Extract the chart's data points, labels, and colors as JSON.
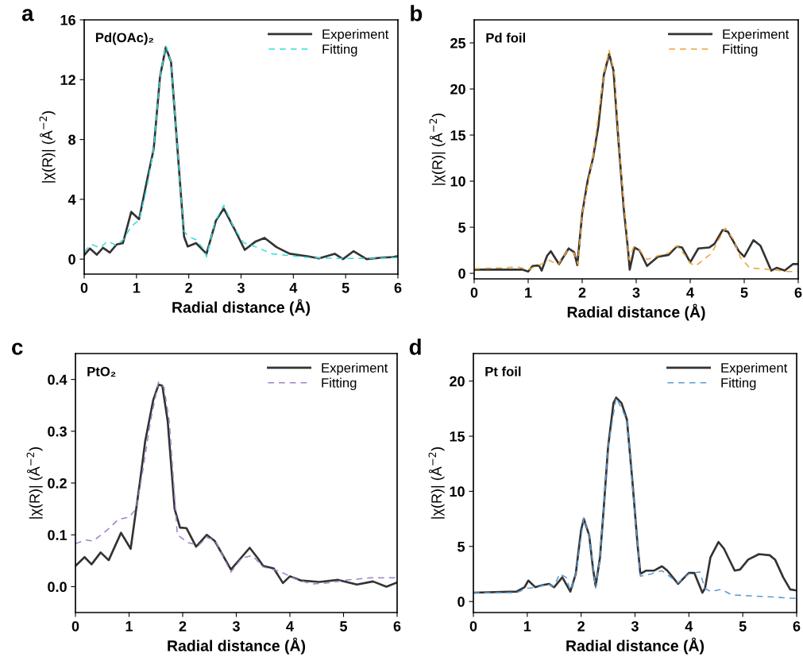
{
  "chart_data": [
    {
      "type": "line",
      "title": "a",
      "xlabel": "Radial distance (Å)",
      "ylabel": "|χ(R)| (Å$^{−2}$)",
      "annotations": [
        "Pd(OAc)₂"
      ],
      "xlim": [
        0,
        6
      ],
      "xticks": [
        0,
        1,
        2,
        3,
        4,
        5,
        6
      ],
      "ylim": [
        -1,
        16
      ],
      "yticks": [
        0,
        4,
        8,
        12,
        16
      ],
      "legend": "top right",
      "grid": false,
      "series": [
        {
          "name": "Experiment",
          "color": "#333333",
          "line_style": "solid",
          "x": [
            0,
            0.11,
            0.24,
            0.36,
            0.49,
            0.62,
            0.74,
            0.9,
            1.05,
            1.2,
            1.33,
            1.45,
            1.56,
            1.66,
            1.78,
            1.91,
            1.98,
            2.14,
            2.34,
            2.52,
            2.67,
            2.87,
            3.07,
            3.27,
            3.45,
            3.68,
            3.93,
            4.29,
            4.49,
            4.79,
            4.95,
            5.15,
            5.4,
            5.66,
            5.91,
            6
          ],
          "values": [
            0.27,
            0.71,
            0.3,
            0.76,
            0.44,
            0.98,
            1.07,
            3.16,
            2.67,
            5.24,
            7.38,
            12.2,
            14.17,
            13.2,
            7.56,
            1.51,
            0.85,
            1.07,
            0.36,
            2.58,
            3.38,
            2.04,
            0.62,
            1.16,
            1.42,
            0.8,
            0.36,
            0.18,
            0.05,
            0.36,
            0,
            0.53,
            0,
            0.09,
            0.14,
            0.2
          ]
        },
        {
          "name": "Fitting",
          "color": "#33dddd",
          "line_style": "dashed",
          "x": [
            0,
            0.14,
            0.3,
            0.45,
            0.6,
            0.75,
            0.9,
            1.05,
            1.2,
            1.33,
            1.45,
            1.56,
            1.66,
            1.78,
            1.9,
            2.0,
            2.14,
            2.3,
            2.34,
            2.5,
            2.67,
            2.85,
            3.05,
            3.3,
            3.6,
            3.9,
            4.3,
            4.8,
            5.4,
            6
          ],
          "values": [
            0.5,
            1.0,
            0.75,
            1.2,
            0.95,
            1.3,
            2.2,
            2.6,
            4.8,
            7.4,
            12.2,
            14.3,
            13.2,
            7.6,
            1.9,
            1.5,
            1.3,
            0.6,
            0.15,
            2.5,
            3.6,
            2.2,
            1.1,
            0.8,
            0.35,
            0.25,
            0.1,
            0.05,
            0.05,
            0.1
          ]
        }
      ]
    },
    {
      "type": "line",
      "title": "b",
      "xlabel": "Radial distance (Å)",
      "ylabel": "|χ(R)| (Å$^{−2}$)",
      "annotations": [
        "Pd foil"
      ],
      "xlim": [
        0,
        6
      ],
      "xticks": [
        0,
        1,
        2,
        3,
        4,
        5,
        6
      ],
      "ylim": [
        -0.6,
        27.5
      ],
      "yticks": [
        0,
        5,
        10,
        15,
        20,
        25
      ],
      "legend": "top right",
      "grid": false,
      "series": [
        {
          "name": "Experiment",
          "color": "#333333",
          "line_style": "solid",
          "x": [
            0,
            0.3,
            0.6,
            0.9,
            1.0,
            1.08,
            1.2,
            1.25,
            1.35,
            1.42,
            1.57,
            1.75,
            1.85,
            1.91,
            2.0,
            2.1,
            2.2,
            2.3,
            2.4,
            2.5,
            2.58,
            2.67,
            2.77,
            2.85,
            2.88,
            2.97,
            3.06,
            3.2,
            3.4,
            3.6,
            3.75,
            3.85,
            4.0,
            4.15,
            4.35,
            4.45,
            4.6,
            4.7,
            4.9,
            5.0,
            5.17,
            5.3,
            5.5,
            5.6,
            5.75,
            5.9,
            6
          ],
          "values": [
            0.4,
            0.4,
            0.4,
            0.4,
            0.2,
            0.8,
            0.85,
            0.3,
            1.9,
            2.4,
            1.0,
            2.7,
            2.3,
            0.9,
            6.5,
            10,
            12.5,
            16,
            21.5,
            23.8,
            22,
            14.5,
            7,
            2.5,
            0.4,
            2.8,
            2.5,
            0.8,
            1.8,
            2.0,
            2.9,
            2.8,
            1.2,
            2.7,
            2.8,
            3.2,
            4.7,
            4.5,
            2.4,
            1.8,
            3.6,
            3.0,
            0.3,
            0.6,
            0.3,
            1.0,
            1.0
          ]
        },
        {
          "name": "Fitting",
          "color": "#f0a030",
          "line_style": "dashed",
          "x": [
            0,
            0.5,
            0.8,
            1.0,
            1.2,
            1.4,
            1.55,
            1.72,
            1.85,
            1.92,
            2.0,
            2.2,
            2.4,
            2.5,
            2.6,
            2.67,
            2.78,
            2.87,
            2.95,
            3.05,
            3.2,
            3.4,
            3.6,
            3.75,
            3.9,
            4.0,
            4.1,
            4.4,
            4.5,
            4.65,
            4.8,
            4.93,
            5.1,
            5.5,
            5.8,
            6
          ],
          "values": [
            0.5,
            0.6,
            0.7,
            0.4,
            0.9,
            1.4,
            0.9,
            2.4,
            2.2,
            1.0,
            6.5,
            12.6,
            21.5,
            24.2,
            21.5,
            14.5,
            7,
            1.5,
            2.8,
            2.6,
            1.5,
            1.9,
            2.2,
            3.0,
            2.0,
            1.1,
            0.8,
            2.2,
            3.4,
            4.9,
            3.7,
            1.7,
            0.6,
            0.4,
            0.2,
            0.2
          ]
        }
      ]
    },
    {
      "type": "line",
      "title": "c",
      "xlabel": "Radial distance (Å)",
      "ylabel": "|χ(R)| (Å$^{−2}$)",
      "annotations": [
        "PtO₂"
      ],
      "xlim": [
        0,
        6
      ],
      "xticks": [
        0,
        1,
        2,
        3,
        4,
        5,
        6
      ],
      "ylim": [
        -0.05,
        0.45
      ],
      "yticks": [
        {
          "value": 0,
          "label": "0.0"
        },
        0.1,
        0.2,
        0.3,
        0.4
      ],
      "legend": "top right",
      "grid": false,
      "series": [
        {
          "name": "Experiment",
          "color": "#333333",
          "line_style": "solid",
          "x": [
            0,
            0.17,
            0.3,
            0.47,
            0.62,
            0.85,
            1.03,
            1.2,
            1.3,
            1.45,
            1.55,
            1.62,
            1.72,
            1.85,
            1.95,
            2.07,
            2.25,
            2.45,
            2.6,
            2.9,
            3.0,
            3.25,
            3.4,
            3.5,
            3.7,
            3.87,
            4.0,
            4.2,
            4.55,
            4.9,
            5.25,
            5.55,
            5.8,
            6
          ],
          "values": [
            0.04,
            0.057,
            0.043,
            0.066,
            0.051,
            0.104,
            0.073,
            0.2,
            0.28,
            0.36,
            0.39,
            0.388,
            0.32,
            0.15,
            0.114,
            0.113,
            0.077,
            0.1,
            0.088,
            0.033,
            0.045,
            0.075,
            0.055,
            0.04,
            0.035,
            0.007,
            0.02,
            0.012,
            0.009,
            0.013,
            0.004,
            0.01,
            0.0,
            0.008
          ]
        },
        {
          "name": "Fitting",
          "color": "#a080c8",
          "line_style": "dashed",
          "x": [
            0,
            0.2,
            0.33,
            0.6,
            0.8,
            1.0,
            1.13,
            1.25,
            1.4,
            1.55,
            1.65,
            1.75,
            1.9,
            2.1,
            2.3,
            2.45,
            2.6,
            2.9,
            3.1,
            3.3,
            3.5,
            3.8,
            4.1,
            4.4,
            4.7,
            5.0,
            5.5,
            6
          ],
          "values": [
            0.083,
            0.09,
            0.088,
            0.11,
            0.13,
            0.134,
            0.15,
            0.22,
            0.32,
            0.395,
            0.385,
            0.32,
            0.1,
            0.085,
            0.08,
            0.095,
            0.09,
            0.028,
            0.055,
            0.06,
            0.038,
            0.03,
            0.015,
            0.005,
            0.007,
            0.012,
            0.017,
            0.017
          ]
        }
      ]
    },
    {
      "type": "line",
      "title": "d",
      "xlabel": "Radial distance (Å)",
      "ylabel": "|χ(R)| (Å$^{−2}$)",
      "annotations": [
        "Pt foil"
      ],
      "xlim": [
        0,
        6
      ],
      "xticks": [
        0,
        1,
        2,
        3,
        4,
        5,
        6
      ],
      "ylim": [
        -1,
        22.5
      ],
      "yticks": [
        0,
        5,
        10,
        15,
        20
      ],
      "legend": "top right",
      "grid": false,
      "series": [
        {
          "name": "Experiment",
          "color": "#333333",
          "line_style": "solid",
          "x": [
            0,
            0.8,
            0.95,
            1.02,
            1.15,
            1.3,
            1.4,
            1.5,
            1.65,
            1.8,
            1.9,
            2.0,
            2.05,
            2.15,
            2.22,
            2.27,
            2.35,
            2.42,
            2.5,
            2.6,
            2.65,
            2.75,
            2.85,
            2.95,
            3.05,
            3.1,
            3.2,
            3.35,
            3.5,
            3.6,
            3.8,
            4.0,
            4.1,
            4.25,
            4.3,
            4.4,
            4.55,
            4.65,
            4.85,
            4.95,
            5.1,
            5.3,
            5.5,
            5.6,
            5.75,
            5.88,
            6
          ],
          "values": [
            0.8,
            0.9,
            1.3,
            1.9,
            1.3,
            1.5,
            1.6,
            1.3,
            2.2,
            0.9,
            2.5,
            6.5,
            7.5,
            6.0,
            3,
            1.4,
            4,
            8.5,
            14,
            18,
            18.5,
            18,
            16.5,
            11,
            5,
            2.5,
            2.8,
            2.8,
            3.2,
            2.8,
            1.6,
            2.6,
            2.6,
            0.8,
            1.2,
            4,
            5.4,
            4.8,
            2.8,
            2.9,
            3.8,
            4.3,
            4.2,
            3.8,
            2.2,
            1.1,
            1.0
          ]
        },
        {
          "name": "Fitting",
          "color": "#5b9bd5",
          "line_style": "dashed",
          "x": [
            0,
            0.8,
            1.0,
            1.2,
            1.35,
            1.5,
            1.6,
            1.72,
            1.8,
            1.9,
            2.05,
            2.15,
            2.27,
            2.35,
            2.5,
            2.65,
            2.85,
            3.05,
            3.1,
            3.3,
            3.5,
            3.8,
            4.0,
            4.2,
            4.3,
            4.4,
            4.6,
            4.8,
            5.2,
            5.6,
            5.9,
            6
          ],
          "values": [
            0.8,
            0.8,
            1.2,
            1.3,
            1.6,
            1.4,
            2.5,
            2.2,
            1.0,
            2.5,
            7.6,
            6,
            1.2,
            4,
            14,
            18.5,
            16.5,
            5,
            2.3,
            2.5,
            2.8,
            1.7,
            2.5,
            2.7,
            1.2,
            0.9,
            1.1,
            0.6,
            0.5,
            0.4,
            0.3,
            0.3
          ]
        }
      ]
    }
  ]
}
